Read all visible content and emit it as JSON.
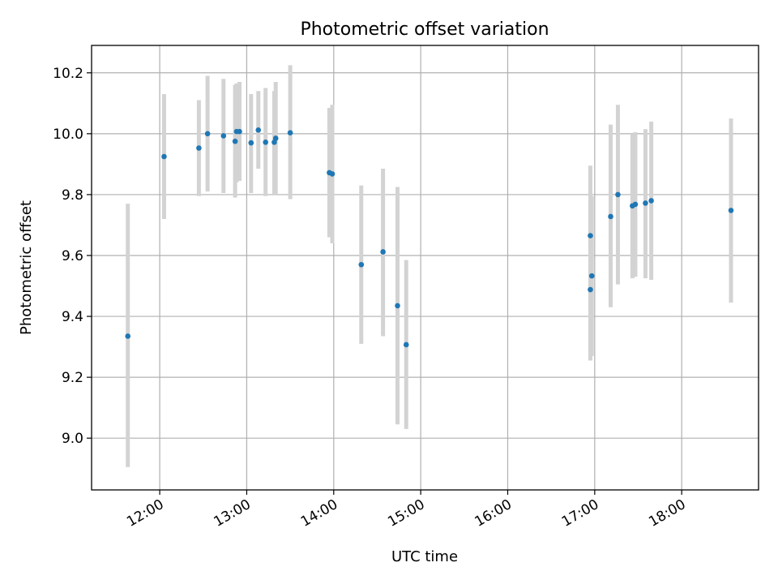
{
  "chart_data": {
    "type": "scatter",
    "title": "Photometric offset variation",
    "xlabel": "UTC time",
    "ylabel": "Photometric offset",
    "x_ticks": [
      "12:00",
      "13:00",
      "14:00",
      "15:00",
      "16:00",
      "17:00",
      "18:00"
    ],
    "y_ticks": [
      "9.0",
      "9.2",
      "9.4",
      "9.6",
      "9.8",
      "10.0",
      "10.2"
    ],
    "xlim": [
      "11:13",
      "18:53"
    ],
    "ylim": [
      8.83,
      10.29
    ],
    "grid": true,
    "point_color": "#1f77b4",
    "errorbar_color": "#d3d3d3",
    "points": [
      {
        "x": "11:38",
        "y": 9.335,
        "ylo": 8.905,
        "yhi": 9.77
      },
      {
        "x": "12:03",
        "y": 9.925,
        "ylo": 9.72,
        "yhi": 10.13
      },
      {
        "x": "12:27",
        "y": 9.953,
        "ylo": 9.795,
        "yhi": 10.11
      },
      {
        "x": "12:33",
        "y": 10.0,
        "ylo": 9.81,
        "yhi": 10.19
      },
      {
        "x": "12:44",
        "y": 9.993,
        "ylo": 9.805,
        "yhi": 10.18
      },
      {
        "x": "12:52",
        "y": 9.975,
        "ylo": 9.79,
        "yhi": 10.16
      },
      {
        "x": "12:53",
        "y": 10.007,
        "ylo": 9.84,
        "yhi": 10.165
      },
      {
        "x": "12:55",
        "y": 10.007,
        "ylo": 9.845,
        "yhi": 10.17
      },
      {
        "x": "13:03",
        "y": 9.97,
        "ylo": 9.805,
        "yhi": 10.13
      },
      {
        "x": "13:08",
        "y": 10.012,
        "ylo": 9.885,
        "yhi": 10.14
      },
      {
        "x": "13:13",
        "y": 9.972,
        "ylo": 9.795,
        "yhi": 10.15
      },
      {
        "x": "13:19",
        "y": 9.972,
        "ylo": 9.8,
        "yhi": 10.14
      },
      {
        "x": "13:20",
        "y": 9.985,
        "ylo": 9.8,
        "yhi": 10.17
      },
      {
        "x": "13:30",
        "y": 10.003,
        "ylo": 9.785,
        "yhi": 10.225
      },
      {
        "x": "13:57",
        "y": 9.872,
        "ylo": 9.66,
        "yhi": 10.085
      },
      {
        "x": "13:59",
        "y": 9.868,
        "ylo": 9.64,
        "yhi": 10.095
      },
      {
        "x": "14:19",
        "y": 9.57,
        "ylo": 9.31,
        "yhi": 9.83
      },
      {
        "x": "14:34",
        "y": 9.612,
        "ylo": 9.335,
        "yhi": 9.885
      },
      {
        "x": "14:44",
        "y": 9.435,
        "ylo": 9.045,
        "yhi": 9.825
      },
      {
        "x": "14:50",
        "y": 9.307,
        "ylo": 9.03,
        "yhi": 9.585
      },
      {
        "x": "16:57",
        "y": 9.665,
        "ylo": 9.435,
        "yhi": 9.895
      },
      {
        "x": "16:57",
        "y": 9.488,
        "ylo": 9.255,
        "yhi": 9.72
      },
      {
        "x": "16:58",
        "y": 9.533,
        "ylo": 9.27,
        "yhi": 9.795
      },
      {
        "x": "17:11",
        "y": 9.728,
        "ylo": 9.43,
        "yhi": 10.03
      },
      {
        "x": "17:16",
        "y": 9.8,
        "ylo": 9.505,
        "yhi": 10.095
      },
      {
        "x": "17:26",
        "y": 9.763,
        "ylo": 9.525,
        "yhi": 10.0
      },
      {
        "x": "17:28",
        "y": 9.768,
        "ylo": 9.53,
        "yhi": 10.005
      },
      {
        "x": "17:35",
        "y": 9.772,
        "ylo": 9.525,
        "yhi": 10.015
      },
      {
        "x": "17:39",
        "y": 9.78,
        "ylo": 9.52,
        "yhi": 10.04
      },
      {
        "x": "18:34",
        "y": 9.748,
        "ylo": 9.445,
        "yhi": 10.05
      }
    ]
  }
}
